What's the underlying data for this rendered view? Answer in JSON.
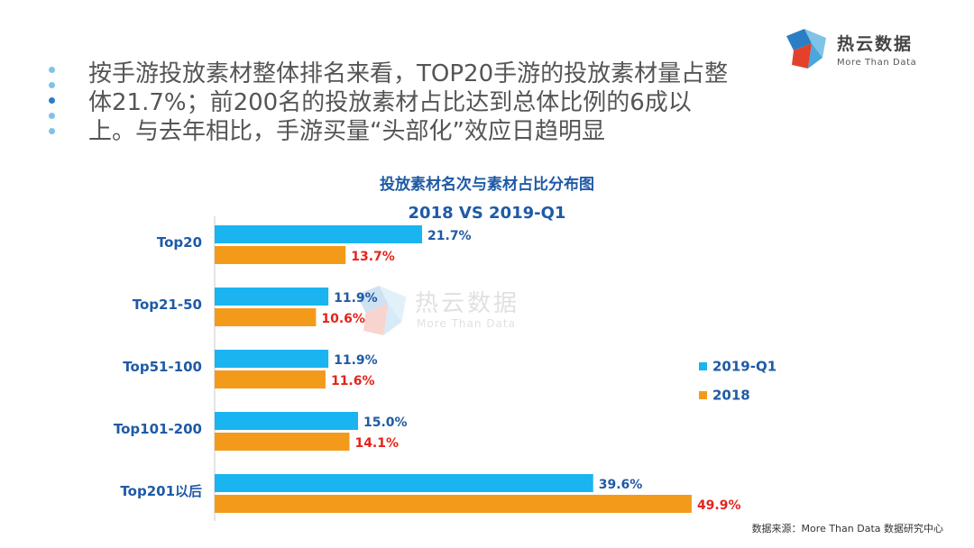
{
  "logo": {
    "name": "热云数据",
    "tagline": "More Than Data"
  },
  "headline": "按手游投放素材整体排名来看，TOP20手游的投放素材量占整体21.7%；前200名的投放素材占比达到总体比例的6成以上。与去年相比，手游买量“头部化”效应日趋明显",
  "bullet_colors": [
    "#7fc3e8",
    "#7fc3e8",
    "#2a7ec4",
    "#7fc3e8",
    "#7fc3e8"
  ],
  "watermark": {
    "name": "热云数据",
    "tagline": "More Than Data"
  },
  "source": "数据来源：More Than Data 数据研究中心",
  "colors": {
    "series_2019": "#1ab4f0",
    "series_2018": "#f49a1b",
    "label_2019": "#1f5aa6",
    "label_2018": "#e3241b",
    "category": "#1f5aa6",
    "axis": "#c8c8c8"
  },
  "chart_data": {
    "type": "bar",
    "orientation": "horizontal",
    "title": "投放素材名次与素材占比分布图",
    "subtitle": "2018 VS 2019-Q1",
    "categories": [
      "Top20",
      "Top21-50",
      "Top51-100",
      "Top101-200",
      "Top201以后"
    ],
    "series": [
      {
        "name": "2019-Q1",
        "values": [
          21.7,
          11.9,
          11.9,
          15.0,
          39.6
        ],
        "labels": [
          "21.7%",
          "11.9%",
          "11.9%",
          "15.0%",
          "39.6%"
        ]
      },
      {
        "name": "2018",
        "values": [
          13.7,
          10.6,
          11.6,
          14.1,
          49.9
        ],
        "labels": [
          "13.7%",
          "10.6%",
          "11.6%",
          "14.1%",
          "49.9%"
        ]
      }
    ],
    "xlim": [
      0,
      50
    ],
    "grid": false,
    "legend": "right"
  }
}
